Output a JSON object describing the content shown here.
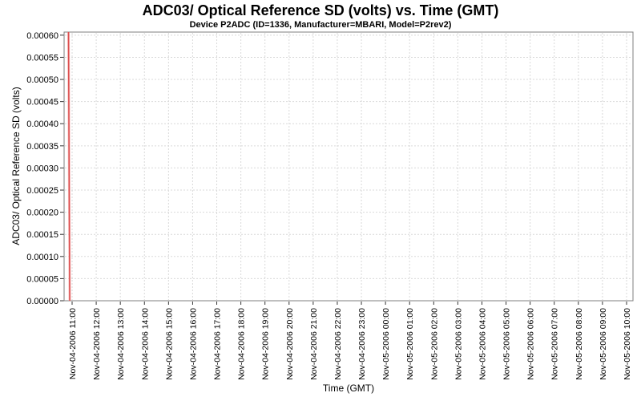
{
  "chart_data": {
    "type": "line",
    "title": "ADC03/ Optical Reference SD (volts) vs. Time (GMT)",
    "subtitle": "Device P2ADC (ID=1336, Manufacturer=MBARI, Model=P2rev2)",
    "xlabel": "Time (GMT)",
    "ylabel": "ADC03/ Optical Reference SD (volts)",
    "ylim": [
      0.0,
      0.000607
    ],
    "y_ticks": [
      "0.00000",
      "0.00005",
      "0.00010",
      "0.00015",
      "0.00020",
      "0.00025",
      "0.00030",
      "0.00035",
      "0.00040",
      "0.00045",
      "0.00050",
      "0.00055",
      "0.00060"
    ],
    "x_ticks": [
      "Nov-04-2006 11:00",
      "Nov-04-2006 12:00",
      "Nov-04-2006 13:00",
      "Nov-04-2006 14:00",
      "Nov-04-2006 15:00",
      "Nov-04-2006 16:00",
      "Nov-04-2006 17:00",
      "Nov-04-2006 18:00",
      "Nov-04-2006 19:00",
      "Nov-04-2006 20:00",
      "Nov-04-2006 21:00",
      "Nov-04-2006 22:00",
      "Nov-04-2006 23:00",
      "Nov-05-2006 00:00",
      "Nov-05-2006 01:00",
      "Nov-05-2006 02:00",
      "Nov-05-2006 03:00",
      "Nov-05-2006 04:00",
      "Nov-05-2006 05:00",
      "Nov-05-2006 06:00",
      "Nov-05-2006 07:00",
      "Nov-05-2006 08:00",
      "Nov-05-2006 09:00",
      "Nov-05-2006 10:00"
    ],
    "grid": {
      "show": true,
      "style": "dashed"
    },
    "legend": "none",
    "series": [
      {
        "name": "ADC03/ Optical Reference SD",
        "description": "Single near-vertical spike at the very start of the time range (just before Nov-04-2006 11:00): value drops from the top of the axis (>= 0.0006 V, clipped) to 0 V; no further data visible.",
        "spike_time_estimate": "Nov-04-2006 10:52",
        "points": [
          {
            "time": "Nov-04-2006 10:52",
            "value": 0.000607,
            "x_frac": 0.0077
          },
          {
            "time": "Nov-04-2006 10:55",
            "value": 0.0,
            "x_frac": 0.0099
          }
        ]
      }
    ]
  },
  "colors": {
    "background": "#ffffff",
    "series_red_core": "#dc4f4f",
    "series_red_halo": "rgba(243,154,154,0.6)",
    "gridline": "#d9d9d9",
    "plot_border": "#7f7f7f",
    "tick_mark": "#333333",
    "text": "#000000"
  }
}
